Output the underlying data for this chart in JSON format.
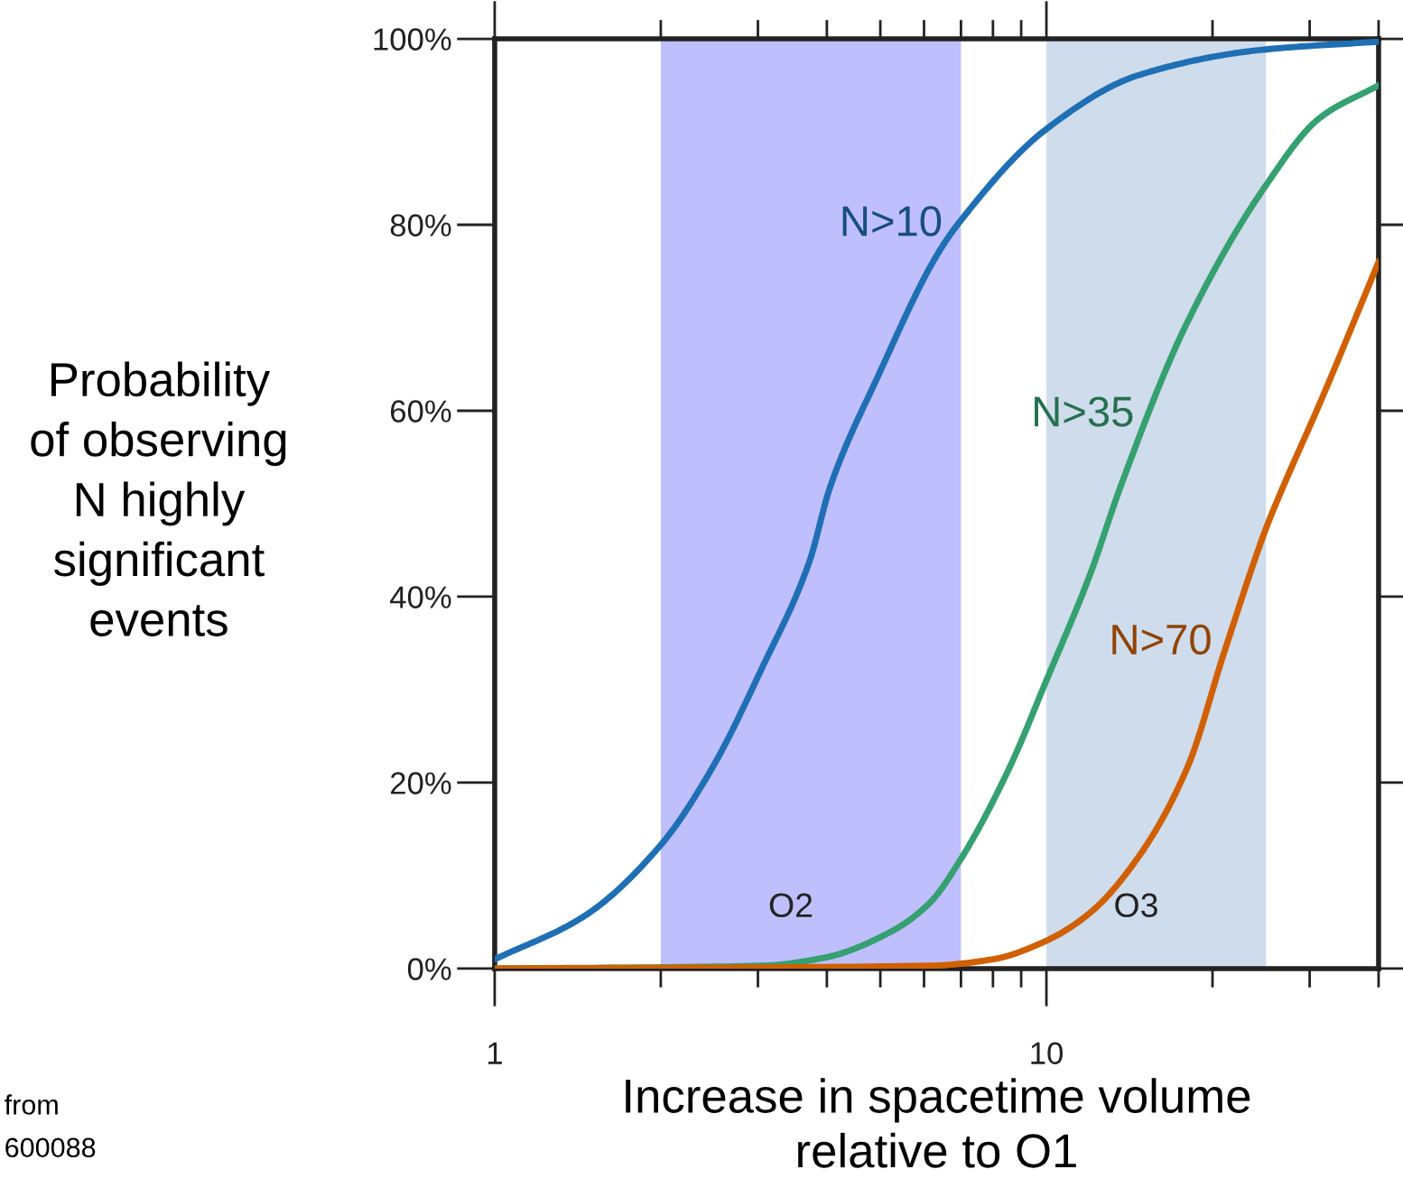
{
  "chart_data": {
    "type": "line",
    "xlabel": "Increase in spacetime volume\nrelative to O1",
    "ylabel": "Probability\nof observing\nN highly\nsignificant\nevents",
    "log": "x",
    "xlim": [
      1,
      40
    ],
    "xticks": [
      1,
      10
    ],
    "ylim": [
      0,
      100
    ],
    "yticks": [
      {
        "value": 0,
        "label": "0%"
      },
      {
        "value": 20,
        "label": "20%"
      },
      {
        "value": 40,
        "label": "40%"
      },
      {
        "value": 60,
        "label": "60%"
      },
      {
        "value": 80,
        "label": "80%"
      },
      {
        "value": 100,
        "label": "100%"
      }
    ],
    "grid": false,
    "legend": false,
    "marker": "none",
    "line_style": "solid",
    "series": [
      {
        "name": "N>10",
        "color": "#1f6fb5",
        "x": [
          1,
          1.45,
          2.0,
          2.48,
          3.05,
          3.72,
          4.05,
          4.95,
          6.37,
          6.94,
          10,
          14.7,
          24.4,
          40
        ],
        "values": [
          1.0,
          5.6,
          13.3,
          21.6,
          32.3,
          43.8,
          51.7,
          63.7,
          77.0,
          80.2,
          90.3,
          96.1,
          98.8,
          99.7
        ]
      },
      {
        "name": "N>35",
        "color": "#35a070",
        "x": [
          1,
          3.05,
          3.98,
          5.2,
          6.13,
          7.0,
          8.57,
          10,
          12.0,
          13.6,
          17.8,
          24.9,
          31.3,
          40
        ],
        "values": [
          0,
          0.3,
          1.2,
          3.9,
          7.0,
          11.8,
          21.6,
          31.0,
          42.4,
          51.7,
          68.9,
          84.1,
          91.5,
          95.0
        ]
      },
      {
        "name": "N>70",
        "color": "#d06000",
        "x": [
          1,
          6.13,
          8.0,
          10,
          12.0,
          14.6,
          18.0,
          21.1,
          25.1,
          26.8,
          31.3,
          40
        ],
        "values": [
          0,
          0.3,
          1.0,
          3.0,
          6.0,
          11.8,
          21.6,
          34.4,
          47.6,
          51.7,
          60.8,
          76.0
        ]
      }
    ],
    "bands": [
      {
        "axis": "x",
        "from": 2,
        "to": 7,
        "label": "O2",
        "color": "#bfbffd"
      },
      {
        "axis": "x",
        "from": 10,
        "to": 25,
        "label": "O3",
        "color": "#cfdcec"
      }
    ],
    "annotations": [
      "from",
      "600088"
    ]
  }
}
